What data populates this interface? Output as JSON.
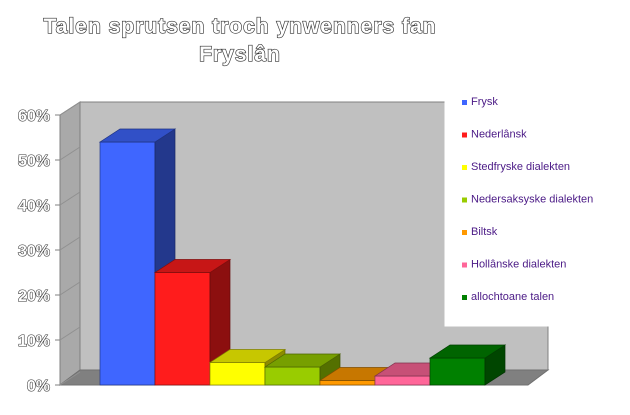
{
  "chart_data": {
    "type": "bar",
    "title": "Talen sprutsen troch ynwenners fan Fryslân",
    "title_lines": [
      "Talen sprutsen troch ynwenners fan",
      "Fryslân"
    ],
    "categories": [
      "Frysk",
      "Nederlânsk",
      "Stedfryske dialekten",
      "Nedersaksyske dialekten",
      "Biltsk",
      "Hollânske dialekten",
      "allochtoane talen"
    ],
    "values": [
      54,
      25,
      5,
      4,
      1,
      2,
      6
    ],
    "colors": [
      "#3f66ff",
      "#ff1c1c",
      "#ffff00",
      "#99cc00",
      "#ff9900",
      "#ff6699",
      "#008000"
    ],
    "y_ticks": [
      "0%",
      "10%",
      "20%",
      "30%",
      "40%",
      "50%",
      "60%"
    ],
    "ylim": [
      0,
      60
    ],
    "xlabel": "",
    "ylabel": "",
    "grid": false,
    "legend_position": "right",
    "style": "3d-column"
  }
}
